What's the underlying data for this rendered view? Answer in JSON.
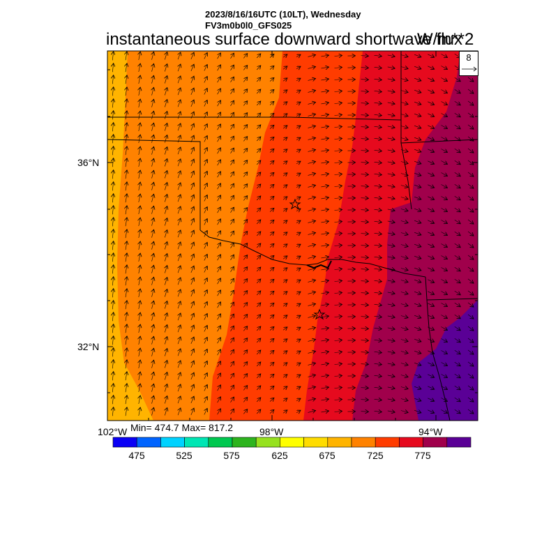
{
  "header": {
    "datetime": "2023/8/16/16UTC (10LT), Wednesday",
    "model": "FV3m0b0l0_GFS025",
    "title": "instantaneous surface downward shortwave flux",
    "units": "W/m**2"
  },
  "stats": {
    "text": "Min= 474.7 Max= 817.2",
    "min": 474.7,
    "max": 817.2
  },
  "wind_reference": {
    "value": "8"
  },
  "axes": {
    "lon_labels": [
      "102°W",
      "98°W",
      "94°W"
    ],
    "lat_labels": [
      "36°N",
      "32°N"
    ]
  },
  "colorbar": {
    "colors": [
      "#0a00f5",
      "#0064ff",
      "#00d2ff",
      "#00e6b4",
      "#00c850",
      "#2db41e",
      "#96e11e",
      "#ffff00",
      "#ffdc00",
      "#ffb400",
      "#ff8200",
      "#ff3c00",
      "#e60a1e",
      "#a0004b",
      "#5a0096"
    ],
    "labels": [
      "475",
      "525",
      "575",
      "625",
      "675",
      "725",
      "775"
    ]
  },
  "map": {
    "field_colors": {
      "c675": "#ffb400",
      "c700": "#ff8200",
      "c725": "#ff3c00",
      "c750": "#e60a1e",
      "c775": "#a0004b",
      "c800": "#5a0096"
    },
    "markers": [
      "star-1",
      "star-2"
    ]
  }
}
